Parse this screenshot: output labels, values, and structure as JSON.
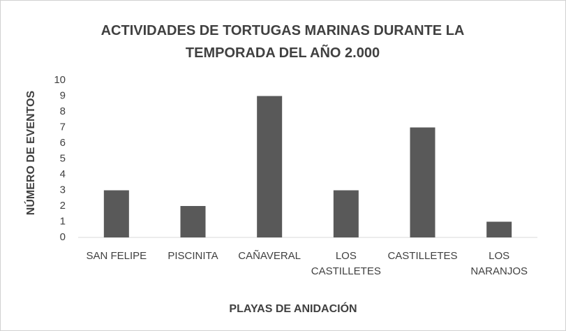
{
  "chart_data": {
    "type": "bar",
    "title": "ACTIVIDADES DE TORTUGAS MARINAS DURANTE LA TEMPORADA DEL AÑO 2.000",
    "x_label": "PLAYAS DE ANIDACIÓN",
    "y_label": "NÚMERO DE EVENTOS",
    "categories": [
      "SAN FELIPE",
      "PISCINITA",
      "CAÑAVERAL",
      "LOS CASTILLETES",
      "CASTILLETES",
      "LOS NARANJOS"
    ],
    "values": [
      3,
      2,
      9,
      3,
      7,
      1
    ],
    "color": "#595959",
    "ylim": [
      0,
      10
    ],
    "yticks": [
      0,
      1,
      2,
      3,
      4,
      5,
      6,
      7,
      8,
      9,
      10
    ],
    "grid": false
  }
}
